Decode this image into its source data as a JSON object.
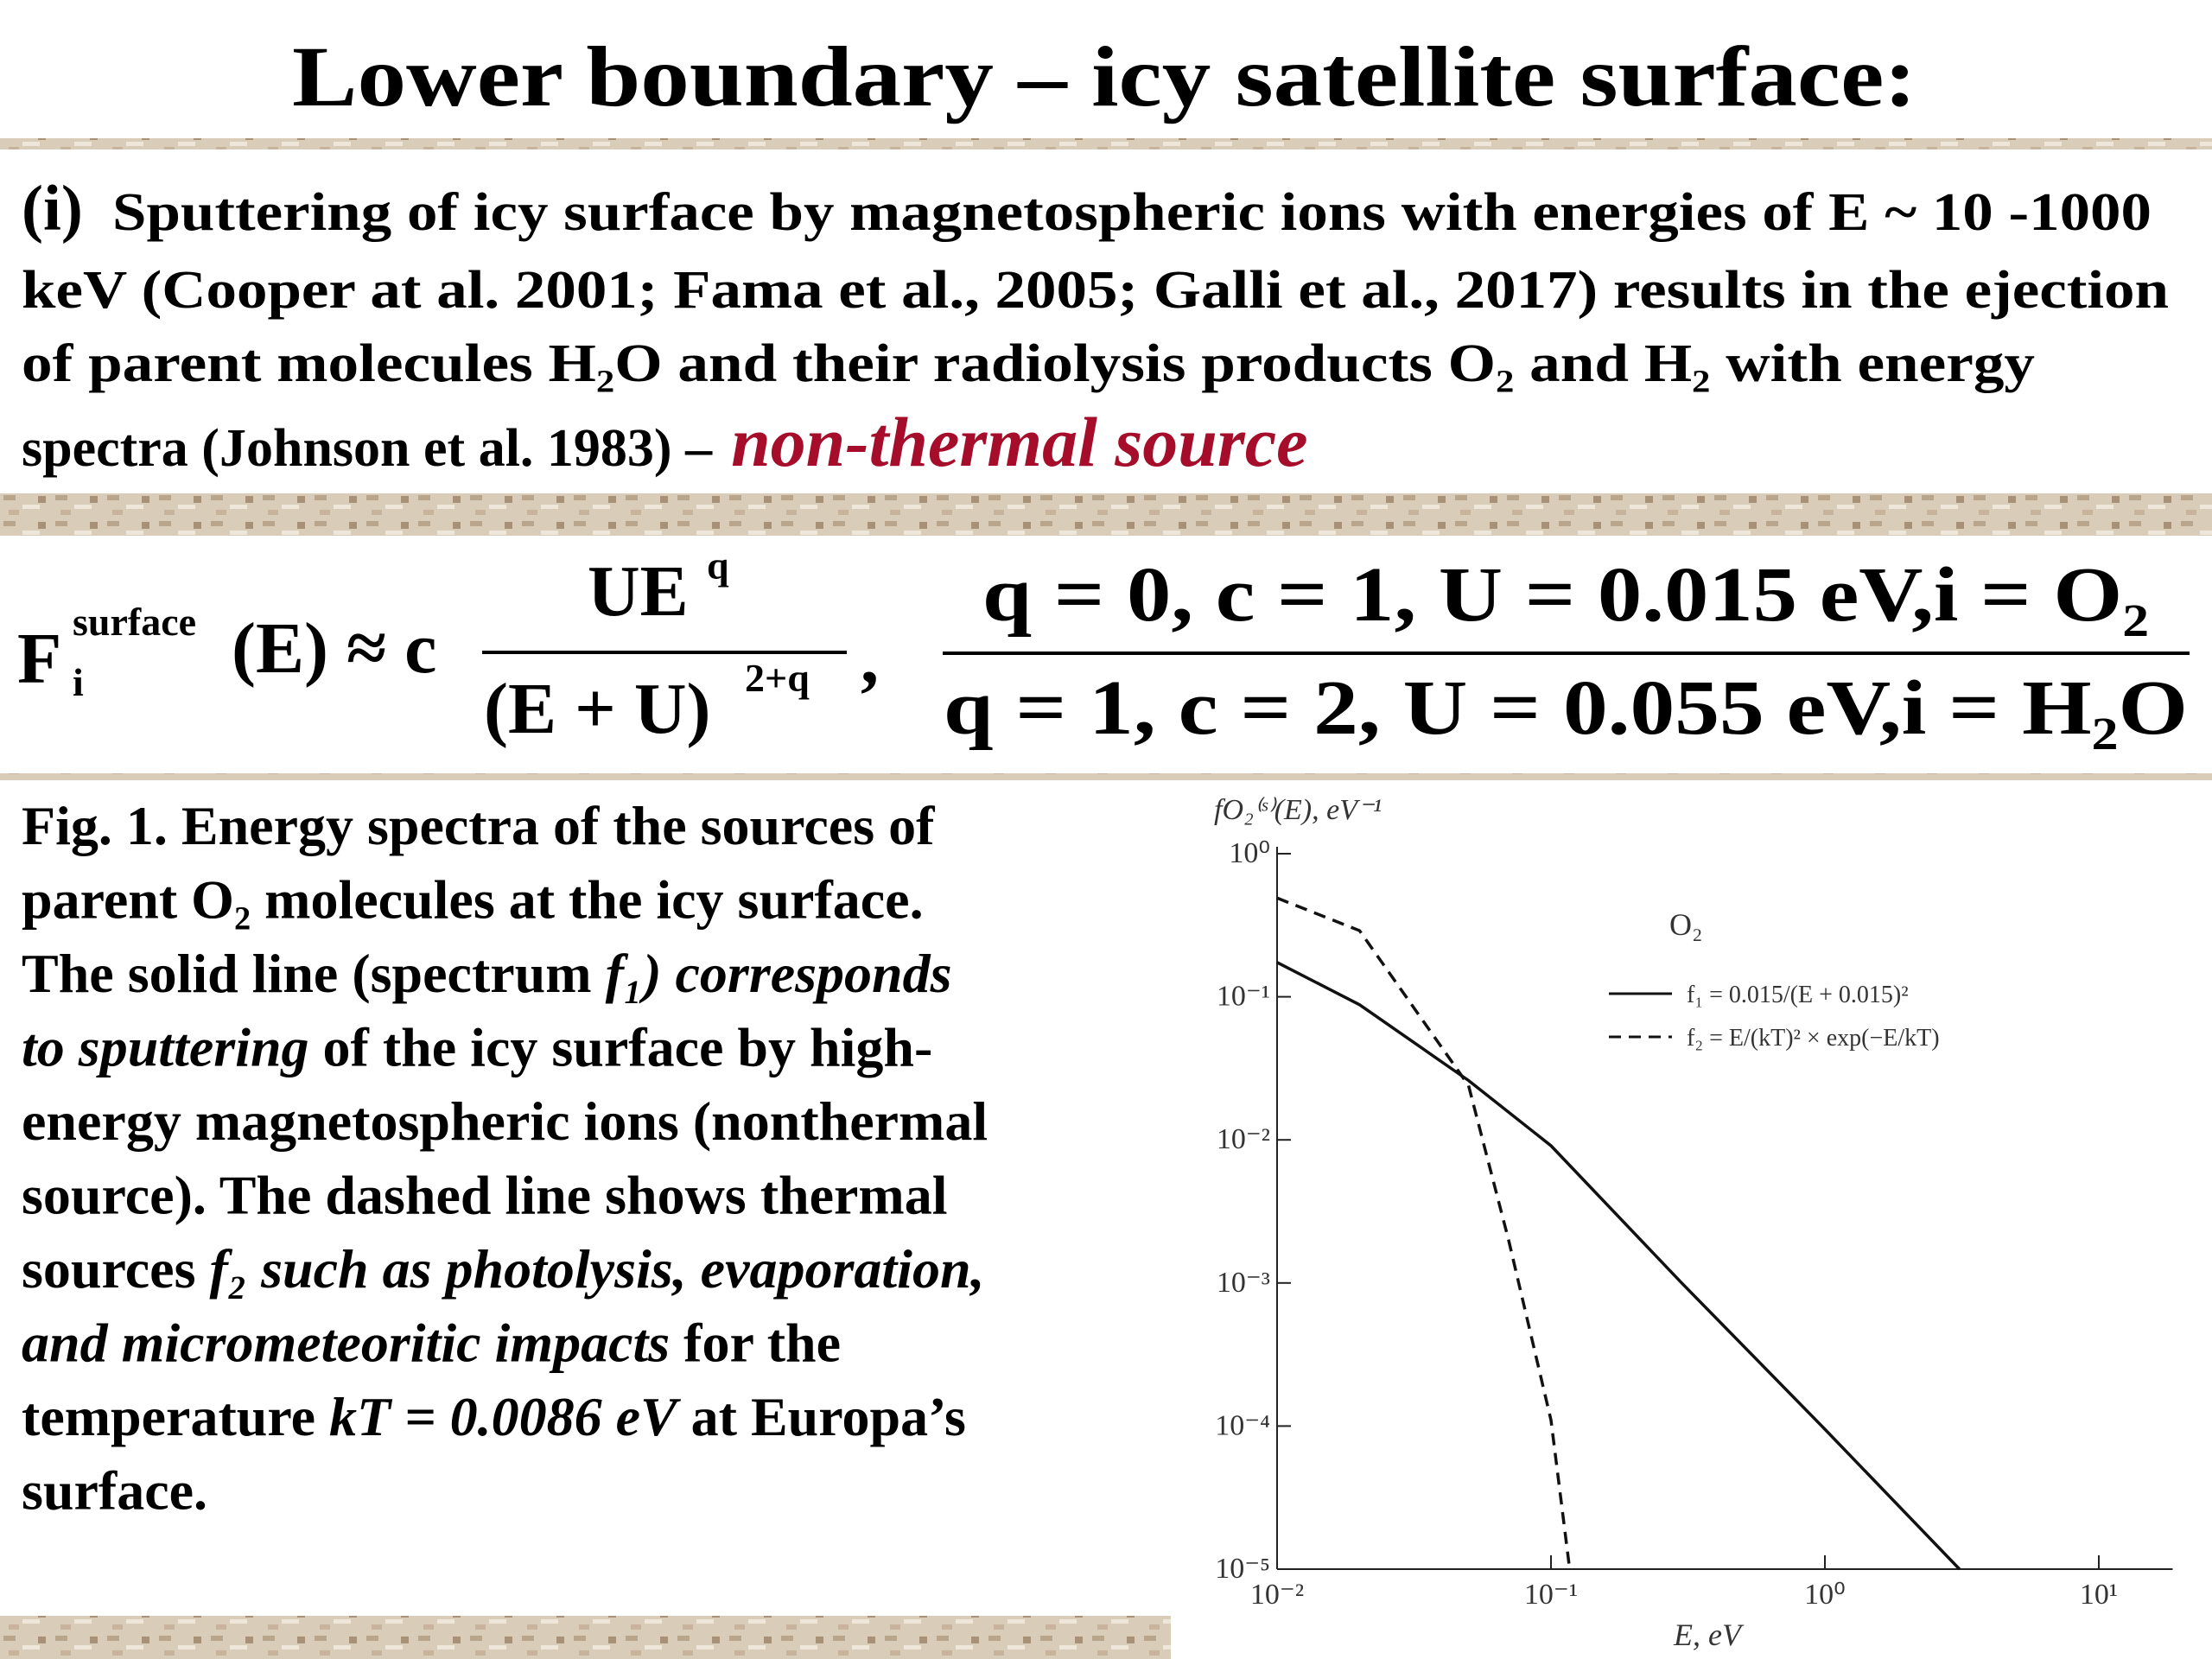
{
  "slide": {
    "title": "Lower boundary – icy satellite surface:",
    "intro": {
      "label": "(i)",
      "lines": [
        "Sputtering of icy surface by magnetospheric ions with energies of E ~ 10 -1000",
        "keV (Cooper at al. 2001; Fama et al., 2005; Galli et al., 2017) results in the ejection",
        "of parent molecules H₂O and their radiolysis products O₂ and H₂ with energy",
        "spectra (Johnson et al. 1983) –"
      ],
      "highlight": "non-thermal source"
    },
    "formula": {
      "lhs": "F",
      "lhs_sub": "i",
      "lhs_sup": "surface",
      "approx": "(E) ≈ c",
      "numerator": "UE",
      "numerator_sup": "q",
      "denominator": "(E + U)",
      "denominator_sup": "2+q",
      "comma": ",",
      "case_top": "q = 0, c = 1, U = 0.015   eV,i = O₂",
      "case_bottom": "q = 1, c = 2, U = 0.055   eV,i = H₂O"
    },
    "caption": [
      [
        "Fig. 1. Energy spectra of the sources of"
      ],
      [
        "parent O₂ molecules at the icy surface."
      ],
      [
        "The solid line (spectrum ",
        {
          "text": "f₁)",
          "style": "italic"
        },
        {
          "text": " corresponds",
          "style": "italic"
        }
      ],
      [
        {
          "text": "to sputtering",
          "style": "italic"
        },
        " of the icy surface by high-"
      ],
      [
        "energy magnetospheric ions (nonthermal"
      ],
      [
        "source). The dashed line shows thermal"
      ],
      [
        "sources ",
        {
          "text": "f₂ such as photolysis, evaporation,",
          "style": "italic"
        }
      ],
      [
        {
          "text": "and micrometeoritic impacts",
          "style": "italic"
        },
        " for the"
      ],
      [
        "temperature ",
        {
          "text": "kT = 0.0086 eV",
          "style": "italic"
        },
        " at Europa’s"
      ],
      [
        "surface."
      ]
    ]
  },
  "chart_data": {
    "type": "line",
    "xscale": "log",
    "yscale": "log",
    "x_label": "E, eV",
    "y_label": "fO₂⁽ˢ⁾(E), eV⁻¹",
    "annotation": "O₂",
    "xlim": [
      0.01,
      18.6
    ],
    "ylim": [
      1e-05,
      1
    ],
    "xticks": [
      {
        "value": 0.01,
        "label": "10⁻²"
      },
      {
        "value": 0.1,
        "label": "10⁻¹"
      },
      {
        "value": 1,
        "label": "10⁰"
      },
      {
        "value": 10,
        "label": "10¹"
      }
    ],
    "yticks": [
      {
        "value": 1,
        "label": "10⁰"
      },
      {
        "value": 0.1,
        "label": "10⁻¹"
      },
      {
        "value": 0.01,
        "label": "10⁻²"
      },
      {
        "value": 0.001,
        "label": "10⁻³"
      },
      {
        "value": 0.0001,
        "label": "10⁻⁴"
      },
      {
        "value": 1e-05,
        "label": "10⁻⁵"
      }
    ],
    "series": [
      {
        "name": "f₁ = 0.015/(E + 0.015)²",
        "color": "#111111",
        "dash": "solid",
        "x": [
          0.01,
          0.02,
          0.05,
          0.1,
          0.3,
          1,
          3.1
        ],
        "values": [
          0.174,
          0.088,
          0.026,
          0.0091,
          0.001,
          9.5e-05,
          1e-05
        ]
      },
      {
        "name": "f₂ = E/(kT)² × exp(−E/kT)",
        "color": "#111111",
        "dash": "dashed",
        "x": [
          0.01,
          0.02,
          0.05,
          0.07,
          0.1,
          0.117
        ],
        "values": [
          0.49,
          0.29,
          0.024,
          0.002,
          0.00011,
          1e-05
        ]
      }
    ]
  }
}
